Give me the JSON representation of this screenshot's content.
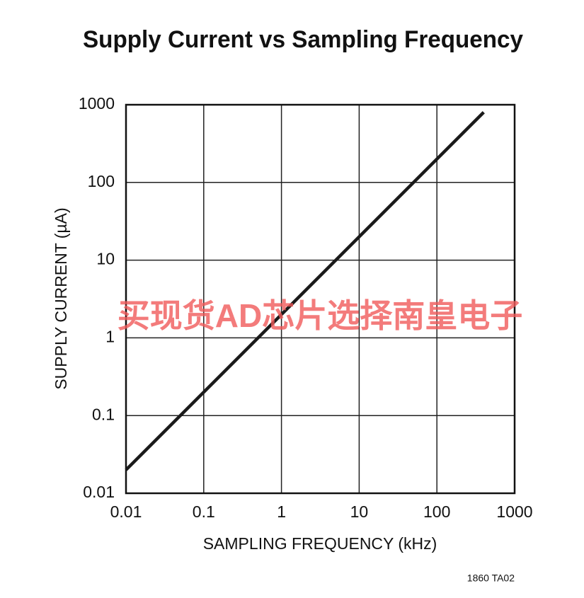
{
  "chart_data": {
    "type": "line",
    "title": "Supply Current vs Sampling Frequency",
    "x_label": "SAMPLING FREQUENCY (kHz)",
    "y_label": "SUPPLY CURRENT (µA)",
    "note": "1860 TA02",
    "watermark": "买现货AD芯片选择南皇电子",
    "x": [
      0.01,
      400
    ],
    "series": [
      {
        "name": "Supply Current",
        "color": "#1a1a1a",
        "values": [
          0.02,
          800
        ]
      }
    ],
    "xscale": "log",
    "yscale": "log",
    "xlim": [
      0.01,
      1000
    ],
    "ylim": [
      0.01,
      1000
    ],
    "xticks": [
      0.01,
      0.1,
      1,
      10,
      100,
      1000
    ],
    "yticks": [
      0.01,
      0.1,
      1,
      10,
      100,
      1000
    ],
    "grid": true
  }
}
